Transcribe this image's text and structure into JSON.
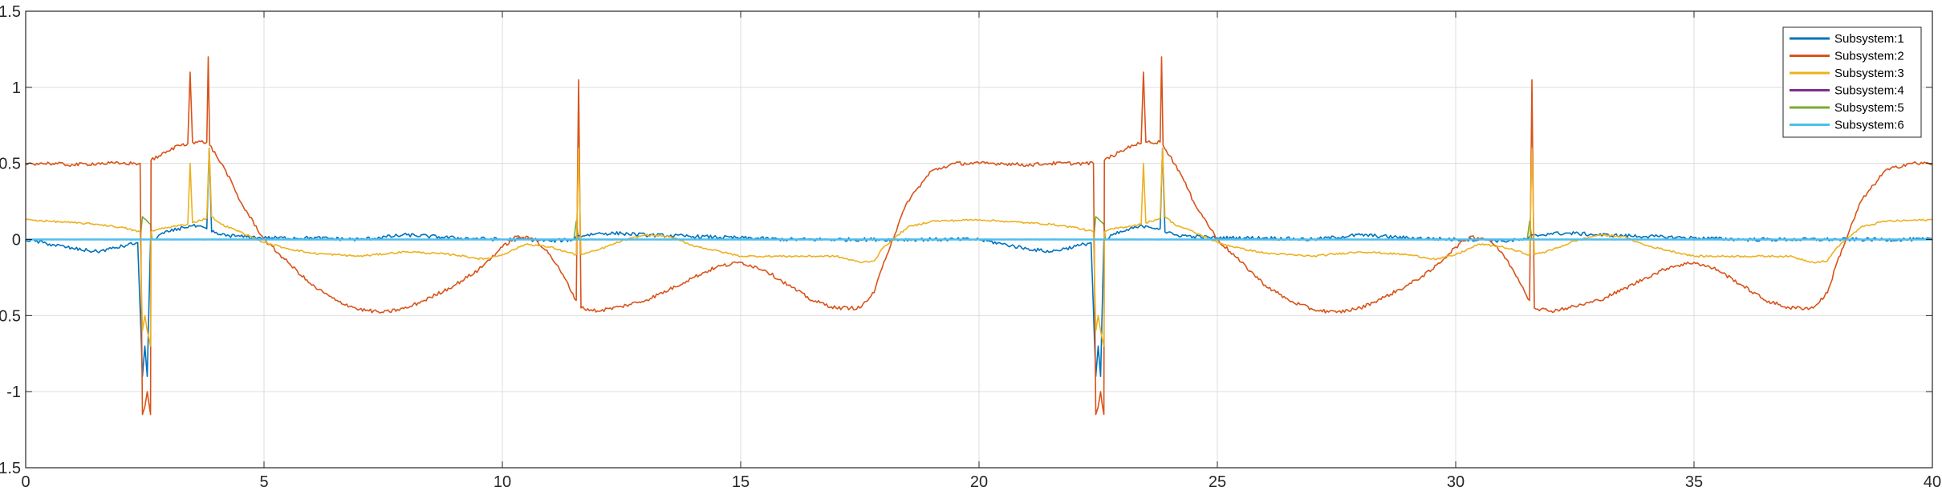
{
  "chart_data": {
    "type": "line",
    "title": "",
    "xlabel": "",
    "ylabel": "",
    "xlim": [
      0,
      40
    ],
    "ylim": [
      -1.5,
      1.5
    ],
    "xticks": [
      0,
      5,
      10,
      15,
      20,
      25,
      30,
      35,
      40
    ],
    "yticks": [
      -1.5,
      -1,
      -0.5,
      0,
      0.5,
      1,
      1.5
    ],
    "xtick_labels": [
      "0",
      "5",
      "10",
      "15",
      "20",
      "25",
      "30",
      "35",
      "40"
    ],
    "ytick_labels": [
      "-1.5",
      "-1",
      "-0.5",
      "0",
      "0.5",
      "1",
      "1.5"
    ],
    "grid": true,
    "legend_position": "top-right",
    "period": 20,
    "series": [
      {
        "name": "Subsystem:1",
        "color": "#0072BD",
        "x": [
          0,
          0.5,
          1.0,
          1.5,
          1.8,
          2.1,
          2.35,
          2.45,
          2.5,
          2.55,
          2.62,
          2.7,
          2.8,
          3.0,
          3.3,
          3.5,
          3.8,
          3.85,
          3.9,
          4.1,
          4.5,
          5.0,
          6.0,
          7.0,
          8.0,
          9.0,
          10.0,
          10.6,
          11.0,
          11.5,
          11.55,
          12.0,
          12.5,
          13.0,
          14.0,
          15.0,
          16.0,
          17.0,
          18.0,
          19.0,
          20.0
        ],
        "y": [
          0.0,
          -0.03,
          -0.06,
          -0.08,
          -0.06,
          -0.04,
          -0.02,
          -0.9,
          -0.7,
          -0.9,
          -0.01,
          0.0,
          0.03,
          0.05,
          0.08,
          0.09,
          0.07,
          0.6,
          0.05,
          0.03,
          0.02,
          0.01,
          0.01,
          0.0,
          0.03,
          0.01,
          0.0,
          0.0,
          -0.01,
          0.0,
          0.02,
          0.04,
          0.04,
          0.03,
          0.02,
          0.01,
          0.0,
          0.0,
          0.0,
          0.0,
          0.0
        ]
      },
      {
        "name": "Subsystem:2",
        "color": "#D95319",
        "x": [
          0,
          0.5,
          1.0,
          1.5,
          2.0,
          2.4,
          2.45,
          2.5,
          2.55,
          2.62,
          2.63,
          2.8,
          3.0,
          3.2,
          3.4,
          3.45,
          3.5,
          3.8,
          3.83,
          3.86,
          4.0,
          4.2,
          4.5,
          5.0,
          5.5,
          6.0,
          6.5,
          7.0,
          7.5,
          8.0,
          8.5,
          9.0,
          9.5,
          10.0,
          10.3,
          10.7,
          11.0,
          11.3,
          11.55,
          11.6,
          11.65,
          12.0,
          12.5,
          13.0,
          13.5,
          14.0,
          14.5,
          15.0,
          15.5,
          16.0,
          16.5,
          17.0,
          17.5,
          17.8,
          18.0,
          18.5,
          19.0,
          19.5,
          20.0
        ],
        "y": [
          0.5,
          0.5,
          0.49,
          0.5,
          0.5,
          0.5,
          -1.15,
          -1.1,
          -1.0,
          -1.15,
          0.52,
          0.55,
          0.58,
          0.62,
          0.63,
          1.1,
          0.64,
          0.64,
          1.2,
          0.62,
          0.55,
          0.45,
          0.25,
          0.0,
          -0.15,
          -0.3,
          -0.4,
          -0.46,
          -0.48,
          -0.45,
          -0.38,
          -0.3,
          -0.2,
          -0.05,
          0.02,
          0.0,
          -0.1,
          -0.25,
          -0.4,
          1.05,
          -0.45,
          -0.47,
          -0.44,
          -0.4,
          -0.33,
          -0.25,
          -0.18,
          -0.15,
          -0.2,
          -0.3,
          -0.4,
          -0.45,
          -0.45,
          -0.35,
          -0.15,
          0.25,
          0.45,
          0.5,
          0.5
        ]
      },
      {
        "name": "Subsystem:3",
        "color": "#EDB120",
        "x": [
          0,
          0.5,
          1.0,
          1.5,
          2.0,
          2.4,
          2.45,
          2.5,
          2.55,
          2.62,
          2.63,
          2.8,
          3.0,
          3.4,
          3.45,
          3.5,
          3.8,
          3.85,
          3.9,
          4.1,
          4.5,
          5.0,
          5.5,
          6.0,
          7.0,
          8.0,
          9.0,
          9.6,
          10.0,
          10.5,
          11.0,
          11.55,
          11.6,
          11.65,
          12.0,
          12.5,
          13.0,
          13.5,
          14.0,
          15.0,
          16.0,
          17.0,
          17.5,
          17.8,
          18.0,
          18.5,
          19.0,
          20.0
        ],
        "y": [
          0.13,
          0.12,
          0.11,
          0.1,
          0.08,
          0.05,
          -0.6,
          -0.5,
          -0.6,
          -0.7,
          0.05,
          0.07,
          0.08,
          0.1,
          0.5,
          0.11,
          0.14,
          0.6,
          0.15,
          0.1,
          0.05,
          -0.02,
          -0.06,
          -0.09,
          -0.11,
          -0.08,
          -0.1,
          -0.13,
          -0.1,
          -0.03,
          -0.05,
          -0.1,
          0.6,
          -0.1,
          -0.07,
          -0.01,
          0.03,
          0.02,
          -0.04,
          -0.11,
          -0.11,
          -0.11,
          -0.15,
          -0.14,
          -0.05,
          0.08,
          0.12,
          0.13
        ]
      },
      {
        "name": "Subsystem:4",
        "color": "#7E2F8E",
        "x": [
          0,
          20
        ],
        "y": [
          0.0,
          0.0
        ]
      },
      {
        "name": "Subsystem:5",
        "color": "#77AC30",
        "x": [
          0,
          2.4,
          2.45,
          2.55,
          2.62,
          2.65,
          11.5,
          11.55,
          11.6,
          11.65,
          20.0
        ],
        "y": [
          0.0,
          0.0,
          0.15,
          0.12,
          0.1,
          0.0,
          0.0,
          0.12,
          0.0,
          0.0,
          0.0
        ]
      },
      {
        "name": "Subsystem:6",
        "color": "#4DBEEE",
        "x": [
          0,
          20
        ],
        "y": [
          0.0,
          0.0
        ]
      }
    ]
  }
}
